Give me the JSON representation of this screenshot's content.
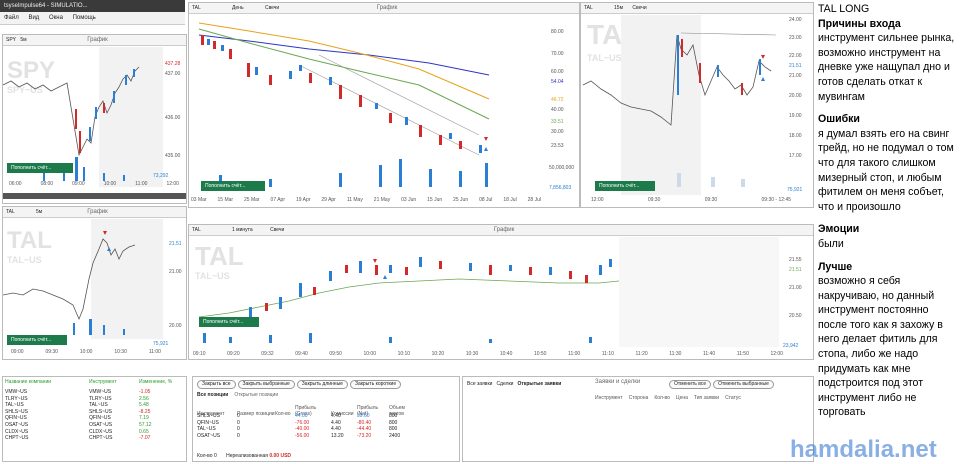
{
  "app": {
    "title": "tsyselmpulse64 - SIMULATIO...",
    "menu": [
      "Файл",
      "Вид",
      "Окна",
      "Помощь"
    ]
  },
  "charts": {
    "spy": {
      "symbol": "SPY",
      "tf": "5м",
      "label": "График",
      "wm1": "SPY",
      "wm2": "SPY~US",
      "fill": "Пополнить счёт...",
      "prices": [
        "437.28",
        "437.00",
        "436.00",
        "435.00"
      ],
      "vol": "73,292",
      "times": [
        "06:00",
        "08:00",
        "09:00",
        "10:00",
        "11:00",
        "12:00"
      ]
    },
    "tal_day": {
      "symbol": "TAL",
      "tf": "День",
      "type": "Свечи",
      "label": "График",
      "fill": "Пополнить счёт...",
      "prices": [
        "80.00",
        "70.00",
        "60.00",
        "54.04",
        "46.72",
        "40.00",
        "33.51",
        "30.00",
        "23.53"
      ],
      "vols": [
        "50,000,000",
        "7,856,803"
      ],
      "dates": [
        "03 Mar",
        "15 Mar",
        "25 Mar",
        "07 Apr",
        "19 Apr",
        "29 Apr",
        "11 May",
        "21 May",
        "03 Jun",
        "15 Jun",
        "25 Jun",
        "08 Jul",
        "18 Jul",
        "28 Jul"
      ]
    },
    "tal_15": {
      "symbol": "TAL",
      "tf": "15м",
      "type": "Свечи",
      "label": "График",
      "wm1": "TAL",
      "wm2": "TAL~US",
      "fill": "Пополнить счёт...",
      "prices": [
        "24.00",
        "23.00",
        "22.00",
        "21.51",
        "21.00",
        "20.00",
        "19.00",
        "18.00",
        "17.00"
      ],
      "vol": "75,921",
      "times": [
        "12:00",
        "09:30",
        "09:30",
        "09:30 - 12:45"
      ]
    },
    "tal_5": {
      "symbol": "TAL",
      "tf": "5м",
      "label": "График",
      "wm1": "TAL",
      "wm2": "TAL~US",
      "fill": "Пополнить счёт...",
      "prices": [
        "21.51",
        "21.00",
        "20.00"
      ],
      "vol": "75,921",
      "times": [
        "09:00",
        "09:30",
        "10:00",
        "10:30",
        "11:00"
      ]
    },
    "tal_1": {
      "symbol": "TAL",
      "tf": "1 минута",
      "type": "Свечи",
      "label": "График",
      "wm1": "TAL",
      "wm2": "TAL~US",
      "fill": "Пополнить счёт...",
      "prices": [
        "21.55",
        "21.51",
        "21.00",
        "20.50"
      ],
      "vol": "23,942",
      "times": [
        "09:10",
        "09:20",
        "09:32",
        "09:40",
        "09:50",
        "10:00",
        "10:10",
        "10:20",
        "10:30",
        "10:40",
        "10:50",
        "11:00",
        "11:10",
        "11:20",
        "11:30",
        "11:40",
        "11:50",
        "12:00"
      ]
    }
  },
  "watchlist": {
    "headers": [
      "Название компании",
      "Инструмент",
      "Изменение, %"
    ],
    "rows": [
      {
        "name": "VMW~US",
        "inst": "VMW~US",
        "chg": "-1.05",
        "cls": "neg"
      },
      {
        "name": "TLRY~US",
        "inst": "TLRY~US",
        "chg": "2.56",
        "cls": "pos"
      },
      {
        "name": "TAL~US",
        "inst": "TAL~US",
        "chg": "5.48",
        "cls": "pos"
      },
      {
        "name": "SHLS~US",
        "inst": "SHLS~US",
        "chg": "-8.25",
        "cls": "neg"
      },
      {
        "name": "QFIN~US",
        "inst": "QFIN~US",
        "chg": "7.19",
        "cls": "pos"
      },
      {
        "name": "OSAT~US",
        "inst": "OSAT~US",
        "chg": "57.12",
        "cls": "pos"
      },
      {
        "name": "CLDX~US",
        "inst": "CLDX~US",
        "chg": "0.65",
        "cls": "pos"
      },
      {
        "name": "CHPT~US",
        "inst": "CHPT~US",
        "chg": "-7.07",
        "cls": "neg"
      }
    ]
  },
  "positions": {
    "buttons": [
      "Закрыть все",
      "Закрыть выбранные",
      "Закрыть длинные",
      "Закрыть короткие"
    ],
    "tabs": [
      "Все позиции",
      "Открытые позиции"
    ],
    "headers": [
      "Инструмент",
      "Размер позиции",
      "Кол-во",
      "Прибыль (Gross)",
      "Комиссии",
      "Прибыль (Net)",
      "Объем торгов"
    ],
    "rows": [
      {
        "inst": "SHLS~US",
        "size": "0",
        "gross": "44.00",
        "comm": "4.40",
        "net": "39.60",
        "vol": "800",
        "cls": "pos"
      },
      {
        "inst": "QFIN~US",
        "size": "0",
        "gross": "-76.00",
        "comm": "4.40",
        "net": "-80.40",
        "vol": "800",
        "cls": "neg"
      },
      {
        "inst": "TAL~US",
        "size": "0",
        "gross": "-40.00",
        "comm": "4.40",
        "net": "-44.40",
        "vol": "800",
        "cls": "neg"
      },
      {
        "inst": "OSAT~US",
        "size": "0",
        "gross": "-56.00",
        "comm": "13.20",
        "net": "-73.20",
        "vol": "2400",
        "cls": "neg"
      }
    ],
    "footer": {
      "qty_label": "Кол-во",
      "qty": "0",
      "unreal_label": "Нереализованная",
      "unreal": "0.00 USD"
    }
  },
  "orders": {
    "tabs": [
      "Все заявки",
      "Сделки",
      "Открытые заявки"
    ],
    "title": "Заявки и сделки",
    "buttons": [
      "Отменить все",
      "Отменить выбранные"
    ],
    "headers": [
      "Инструмент",
      "Сторона",
      "Кол-во",
      "Цена",
      "Тип заявки",
      "Статус"
    ]
  },
  "notes": {
    "title": "TAL LONG",
    "h1": "Причины входа",
    "p1": "инструмент сильнее рынка, возможно инструмент на дневке уже нащупал дно и готов сделать откат к мувингам",
    "h2": "Ошибки",
    "p2": "я думал взять его на свинг трейд, но не подумал о том что для такого слишком мизерный стоп, и любым фитилем он меня собъет, что и произошло",
    "h3": "Эмоции",
    "p3": "были",
    "h4": "Лучше",
    "p4": "возможно я себя накручиваю, но данный инструмент постоянно после того как я захожу в него делает фитиль для стопа, либо же надо придумать как мне подстроится под этот инструмент либо не торговать"
  },
  "watermark": "hamdalia.net",
  "colors": {
    "green": "#1d7a4b",
    "bull": "#2a7fd4",
    "bear": "#d02a2a",
    "ma_blue": "#2b35c8",
    "ma_orange": "#e8a21a",
    "ma_green": "#6aa84f"
  }
}
